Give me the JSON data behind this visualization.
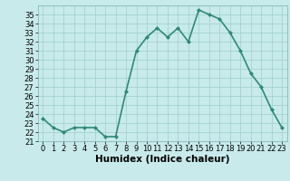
{
  "x": [
    0,
    1,
    2,
    3,
    4,
    5,
    6,
    7,
    8,
    9,
    10,
    11,
    12,
    13,
    14,
    15,
    16,
    17,
    18,
    19,
    20,
    21,
    22,
    23
  ],
  "y": [
    23.5,
    22.5,
    22.0,
    22.5,
    22.5,
    22.5,
    21.5,
    21.5,
    26.5,
    31.0,
    32.5,
    33.5,
    32.5,
    33.5,
    32.0,
    35.5,
    35.0,
    34.5,
    33.0,
    31.0,
    28.5,
    27.0,
    24.5,
    22.5
  ],
  "line_color": "#2e8b74",
  "marker": "D",
  "marker_size": 2.0,
  "background_color": "#c8eaea",
  "grid_color": "#9ecece",
  "xlabel": "Humidex (Indice chaleur)",
  "xlabel_fontsize": 7.5,
  "ylim": [
    21,
    36
  ],
  "xlim": [
    -0.5,
    23.5
  ],
  "yticks": [
    21,
    22,
    23,
    24,
    25,
    26,
    27,
    28,
    29,
    30,
    31,
    32,
    33,
    34,
    35
  ],
  "xticks": [
    0,
    1,
    2,
    3,
    4,
    5,
    6,
    7,
    8,
    9,
    10,
    11,
    12,
    13,
    14,
    15,
    16,
    17,
    18,
    19,
    20,
    21,
    22,
    23
  ],
  "tick_fontsize": 6.0,
  "line_width": 1.2
}
